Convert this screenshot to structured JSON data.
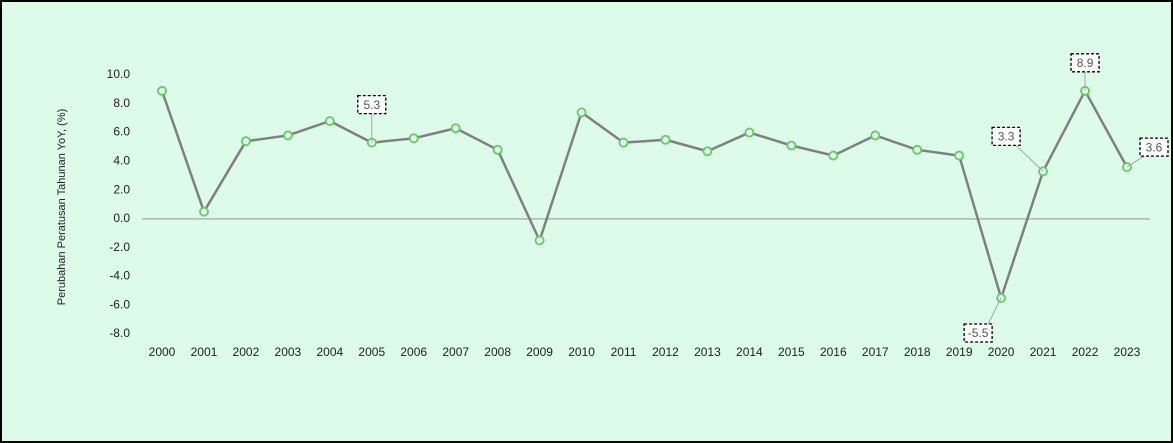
{
  "chart_data": {
    "type": "line",
    "y_axis_label": "Perubahan Peratusan Tahunan YoY, (%)",
    "categories": [
      "2000",
      "2001",
      "2002",
      "2003",
      "2004",
      "2005",
      "2006",
      "2007",
      "2008",
      "2009",
      "2010",
      "2011",
      "2012",
      "2013",
      "2014",
      "2015",
      "2016",
      "2017",
      "2018",
      "2019",
      "2020",
      "2021",
      "2022",
      "2023"
    ],
    "series": [
      {
        "name": "YoY",
        "color": "#808080",
        "marker_color": "#5ccf5c",
        "values": [
          8.9,
          0.5,
          5.4,
          5.8,
          6.8,
          5.3,
          5.6,
          6.3,
          4.8,
          -1.5,
          7.4,
          5.3,
          5.5,
          4.7,
          6.0,
          5.1,
          4.4,
          5.8,
          4.8,
          4.4,
          -5.5,
          3.3,
          8.9,
          3.6
        ],
        "value_labels": [
          null,
          null,
          null,
          null,
          null,
          "5.3",
          null,
          null,
          null,
          null,
          null,
          null,
          null,
          null,
          null,
          null,
          null,
          null,
          null,
          null,
          "-5.5",
          "3.3",
          "8.9",
          "3.6"
        ]
      }
    ],
    "ylim": [
      -8,
      10
    ],
    "yticks": [
      {
        "value": -8,
        "label": "-8.0"
      },
      {
        "value": -6,
        "label": "-6.0"
      },
      {
        "value": -4,
        "label": "-4.0"
      },
      {
        "value": -2,
        "label": "-2.0"
      },
      {
        "value": 0,
        "label": "0.0"
      },
      {
        "value": 2,
        "label": "2.0"
      },
      {
        "value": 4,
        "label": "4.0"
      },
      {
        "value": 6,
        "label": "6.0"
      },
      {
        "value": 8,
        "label": "8.0"
      },
      {
        "value": 10,
        "label": "10.0"
      }
    ],
    "grid": false
  }
}
